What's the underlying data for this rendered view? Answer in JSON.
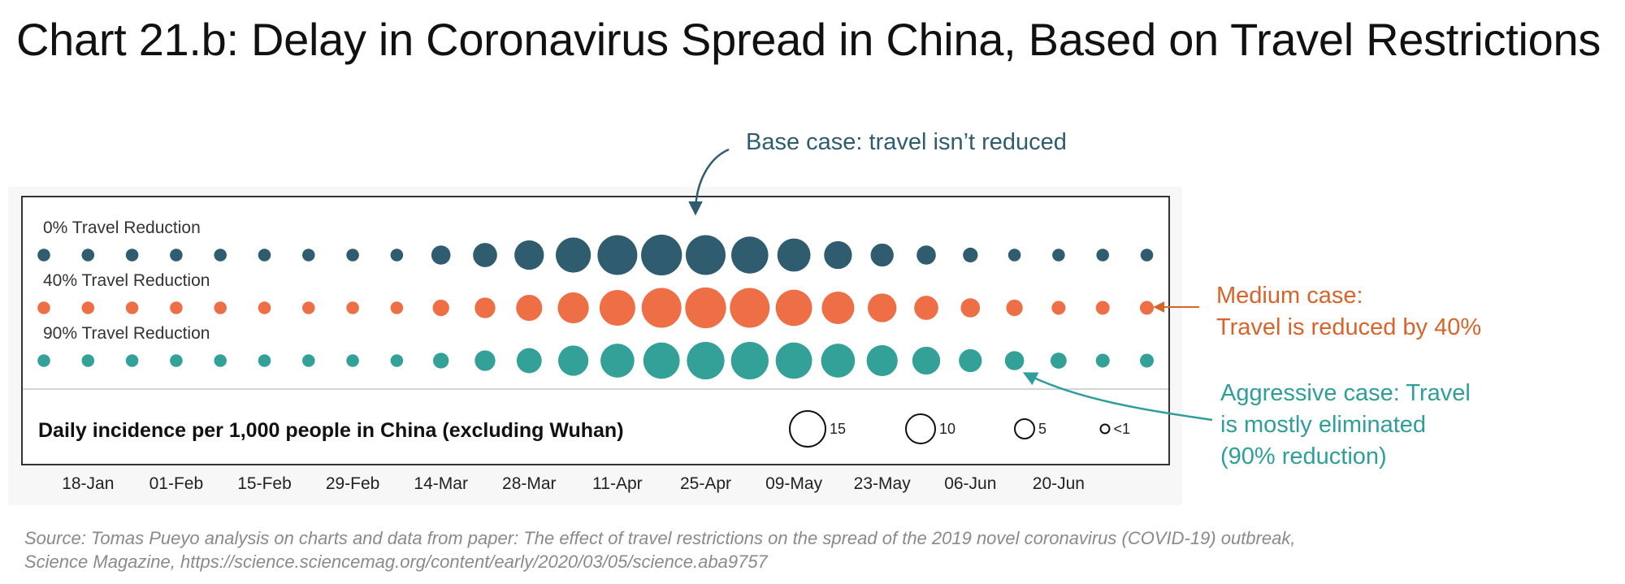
{
  "title": "Chart 21.b: Delay in Coronavirus Spread in China, Based on Travel Restrictions",
  "source": {
    "line1": "Source: Tomas Pueyo analysis on charts and data from paper: The effect of travel restrictions on the spread of the 2019 novel coronavirus (COVID-19) outbreak,",
    "line2": "Science Magazine, https://science.sciencemag.org/content/early/2020/03/05/science.aba9757"
  },
  "annotations": {
    "base": {
      "text": "Base case: travel isn’t reduced",
      "color": "#2f5c6e"
    },
    "medium": {
      "line1": "Medium case:",
      "line2": "Travel is reduced by 40%",
      "color": "#d8642a"
    },
    "aggressive": {
      "line1": "Aggressive case: Travel",
      "line2": "is mostly eliminated",
      "line3": "(90% reduction)",
      "color": "#2f9e9a"
    }
  },
  "chart_data": {
    "type": "bubble-timeline",
    "title": "",
    "xlabel": "",
    "ylabel": "",
    "size_variable": "Daily incidence per 1,000 people in China (excluding Wuhan)",
    "x_ticks": [
      "18-Jan",
      "01-Feb",
      "15-Feb",
      "29-Feb",
      "14-Mar",
      "28-Mar",
      "11-Apr",
      "25-Apr",
      "09-May",
      "23-May",
      "06-Jun",
      "20-Jun"
    ],
    "dates": [
      "11-Jan",
      "18-Jan",
      "25-Jan",
      "01-Feb",
      "08-Feb",
      "15-Feb",
      "22-Feb",
      "29-Feb",
      "07-Mar",
      "14-Mar",
      "21-Mar",
      "28-Mar",
      "04-Apr",
      "11-Apr",
      "18-Apr",
      "25-Apr",
      "02-May",
      "09-May",
      "16-May",
      "23-May",
      "30-May",
      "06-Jun",
      "13-Jun",
      "20-Jun",
      "27-Jun",
      "04-Jul"
    ],
    "series": [
      {
        "name": "0% Travel Reduction",
        "color": "#2f5c6e",
        "values": [
          0.4,
          0.4,
          0.4,
          0.4,
          0.4,
          0.4,
          0.4,
          0.4,
          0.4,
          2,
          4,
          7,
          11,
          15,
          16,
          15,
          12.5,
          9.5,
          6,
          3.5,
          2,
          0.8,
          0.4,
          0.4,
          0.4,
          0.4
        ]
      },
      {
        "name": "40% Travel Reduction",
        "color": "#ee6e45",
        "values": [
          0.4,
          0.4,
          0.4,
          0.4,
          0.4,
          0.4,
          0.4,
          0.4,
          0.4,
          1.2,
          2.5,
          5,
          8,
          11.5,
          15,
          16,
          15,
          12,
          9,
          6.5,
          4,
          2,
          1.2,
          0.6,
          0.6,
          0.6
        ]
      },
      {
        "name": "90% Travel Reduction",
        "color": "#34a199",
        "values": [
          0.4,
          0.4,
          0.4,
          0.4,
          0.4,
          0.4,
          0.4,
          0.4,
          0.4,
          1,
          2.5,
          4.5,
          7.5,
          10,
          12,
          13,
          13,
          12,
          10,
          8,
          6,
          3.5,
          2,
          1.1,
          0.6,
          0.6
        ]
      }
    ],
    "size_legend": [
      {
        "label": "15",
        "value": 15
      },
      {
        "label": "10",
        "value": 10
      },
      {
        "label": "5",
        "value": 5
      },
      {
        "label": "<1",
        "value": 0.5
      }
    ]
  }
}
